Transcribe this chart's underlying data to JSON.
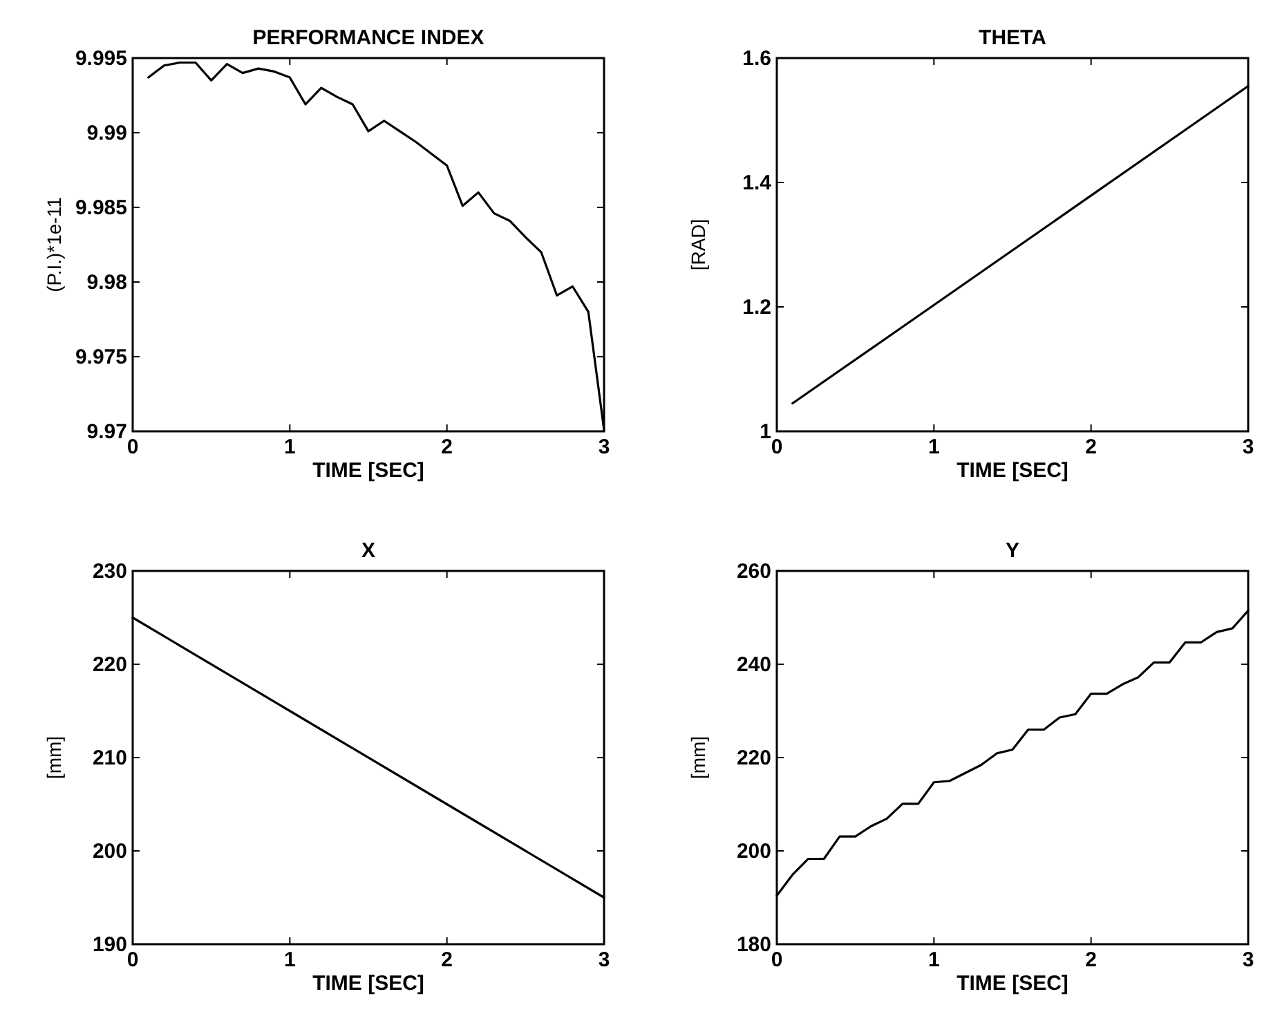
{
  "chart_data": [
    {
      "type": "line",
      "title": "PERFORMANCE INDEX",
      "xlabel": "TIME [SEC]",
      "ylabel": "(P.I.)*1e-11",
      "color": "#000000",
      "xlim": [
        0,
        3
      ],
      "xticks": [
        0,
        1,
        2,
        3
      ],
      "ylim": [
        9.97,
        9.995
      ],
      "yticks": [
        9.97,
        9.975,
        9.98,
        9.985,
        9.99,
        9.995
      ],
      "x": [
        0.1,
        0.2,
        0.3,
        0.4,
        0.5,
        0.6,
        0.7,
        0.8,
        0.9,
        1.0,
        1.1,
        1.2,
        1.3,
        1.4,
        1.5,
        1.6,
        1.7,
        1.8,
        1.9,
        2.0,
        2.1,
        2.2,
        2.3,
        2.4,
        2.5,
        2.6,
        2.7,
        2.8,
        2.9,
        3.0
      ],
      "values": [
        9.9937,
        9.9945,
        9.9947,
        9.9947,
        9.9935,
        9.9946,
        9.994,
        9.9943,
        9.9941,
        9.9937,
        9.9919,
        9.993,
        9.9924,
        9.9919,
        9.9901,
        9.9908,
        9.9901,
        9.9894,
        9.9886,
        9.9878,
        9.9851,
        9.986,
        9.9846,
        9.9841,
        9.983,
        9.982,
        9.9791,
        9.9797,
        9.978,
        9.9701
      ]
    },
    {
      "type": "line",
      "title": "THETA",
      "xlabel": "TIME [SEC]",
      "ylabel": "[RAD]",
      "color": "#000000",
      "xlim": [
        0,
        3
      ],
      "xticks": [
        0,
        1,
        2,
        3
      ],
      "ylim": [
        1,
        1.6
      ],
      "yticks": [
        1,
        1.2,
        1.4,
        1.6
      ],
      "x": [
        0.1,
        1,
        2,
        3
      ],
      "values": [
        1.045,
        1.203,
        1.379,
        1.555
      ]
    },
    {
      "type": "line",
      "title": "X",
      "xlabel": "TIME [SEC]",
      "ylabel": "[mm]",
      "color": "#000000",
      "xlim": [
        0,
        3
      ],
      "xticks": [
        0,
        1,
        2,
        3
      ],
      "ylim": [
        190,
        230
      ],
      "yticks": [
        190,
        200,
        210,
        220,
        230
      ],
      "x": [
        0,
        1,
        2,
        3
      ],
      "values": [
        225,
        215,
        205,
        195
      ]
    },
    {
      "type": "line",
      "title": "Y",
      "xlabel": "TIME [SEC]",
      "ylabel": "[mm]",
      "color": "#000000",
      "xlim": [
        0,
        3
      ],
      "xticks": [
        0,
        1,
        2,
        3
      ],
      "ylim": [
        180,
        260
      ],
      "yticks": [
        180,
        200,
        220,
        240,
        260
      ],
      "x": [
        0,
        0.1,
        0.2,
        0.3,
        0.4,
        0.5,
        0.6,
        0.7,
        0.8,
        0.9,
        1.0,
        1.1,
        1.2,
        1.3,
        1.4,
        1.5,
        1.6,
        1.7,
        1.8,
        1.9,
        2.0,
        2.1,
        2.2,
        2.3,
        2.4,
        2.5,
        2.6,
        2.7,
        2.8,
        2.9,
        3.0
      ],
      "values": [
        190.4,
        194.9,
        198.3,
        198.3,
        203.1,
        203.1,
        205.3,
        206.9,
        210.1,
        210.1,
        214.7,
        215,
        216.7,
        218.4,
        220.9,
        221.7,
        226,
        226,
        228.6,
        229.3,
        233.7,
        233.7,
        235.7,
        237.2,
        240.4,
        240.4,
        244.7,
        244.7,
        246.9,
        247.7,
        251.5
      ]
    }
  ]
}
